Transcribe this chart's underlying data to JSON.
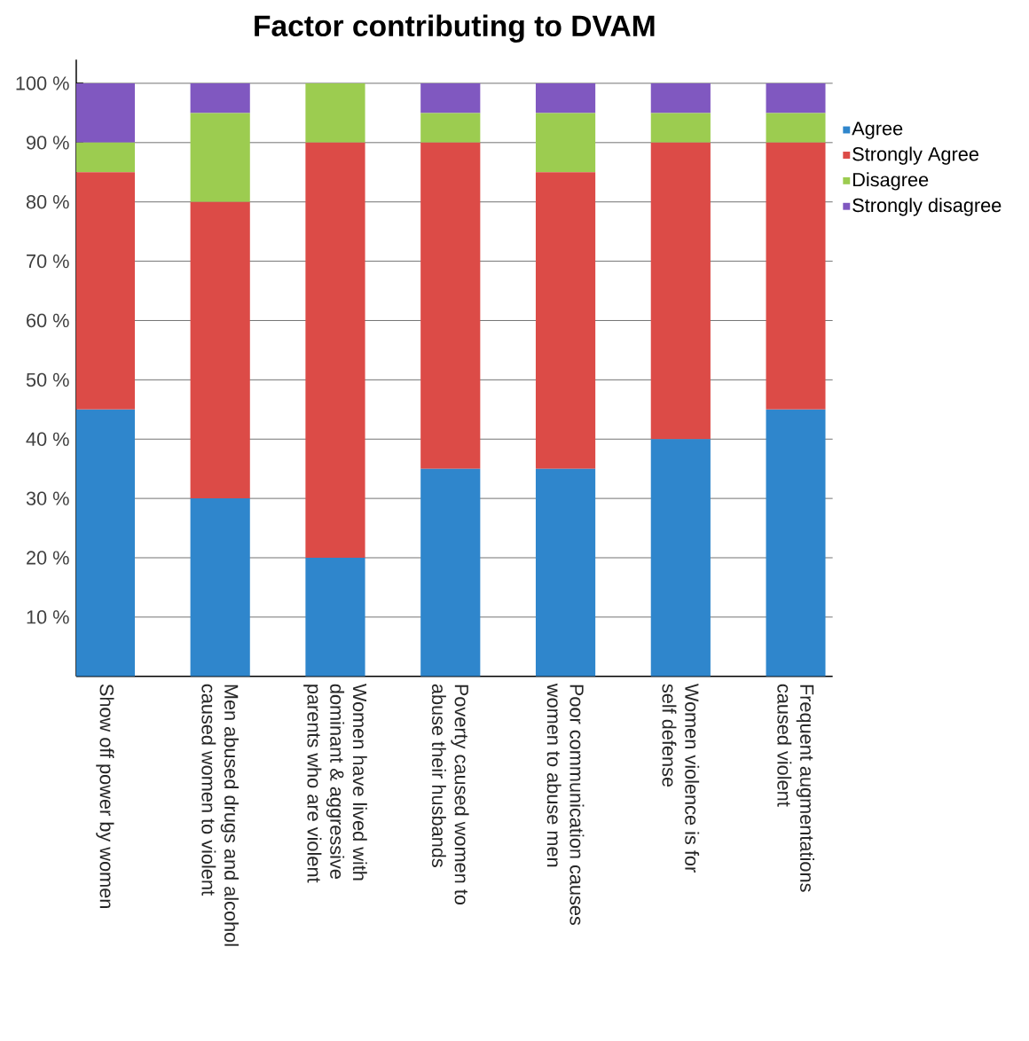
{
  "chart_data": {
    "type": "bar",
    "title": "Factor contributing to DVAM",
    "stacked": true,
    "categories": [
      "Show off power by women",
      "Men abused drugs and alcohol caused women to violent",
      "Women have lived with dominant & aggressive parents who are violent",
      "Poverty caused women to abuse their husbands",
      "Poor communication causes women to abuse men",
      "Women violence is for self defense",
      "Frequent augmentations caused violent"
    ],
    "series": [
      {
        "name": "Agree",
        "color": "#2f86cc",
        "values": [
          45,
          30,
          20,
          35,
          35,
          40,
          45
        ]
      },
      {
        "name": "Strongly Agree",
        "color": "#dc4b47",
        "values": [
          40,
          50,
          70,
          55,
          50,
          50,
          45
        ]
      },
      {
        "name": "Disagree",
        "color": "#9ccc50",
        "values": [
          5,
          15,
          10,
          5,
          10,
          5,
          5
        ]
      },
      {
        "name": "Strongly disagree",
        "color": "#8058c0",
        "values": [
          10,
          5,
          0,
          5,
          5,
          5,
          5
        ]
      }
    ],
    "ylim": [
      0,
      104
    ],
    "yticks": [
      {
        "value": 10,
        "label": "10 %"
      },
      {
        "value": 20,
        "label": "20 %"
      },
      {
        "value": 30,
        "label": "30 %"
      },
      {
        "value": 40,
        "label": "40 %"
      },
      {
        "value": 50,
        "label": "50 %"
      },
      {
        "value": 60,
        "label": "60 %"
      },
      {
        "value": 70,
        "label": "70 %"
      },
      {
        "value": 80,
        "label": "80 %"
      },
      {
        "value": 90,
        "label": "90 %"
      },
      {
        "value": 100,
        "label": "100 %"
      }
    ],
    "grid": "y",
    "legend": "right"
  }
}
